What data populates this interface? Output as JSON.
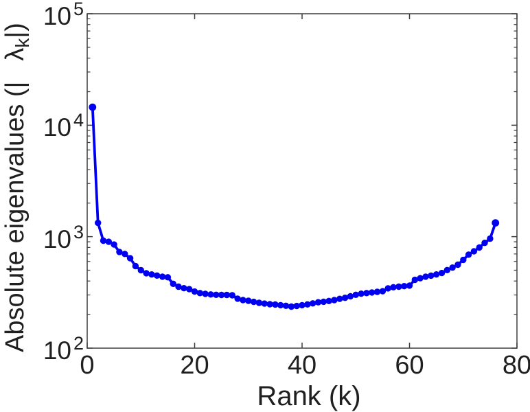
{
  "chart_data": {
    "type": "line",
    "title": "",
    "xlabel": "Rank (k)",
    "ylabel": {
      "prefix": "Absolute eigenvalues (|",
      "lambda": "λ",
      "lambda_sub": "k",
      "suffix": "|)"
    },
    "x_axis": {
      "lim": [
        0,
        80
      ],
      "ticks": [
        0,
        20,
        40,
        60,
        80
      ],
      "scale": "linear"
    },
    "y_axis": {
      "scale": "log",
      "lim_exponents": [
        2,
        5
      ],
      "tick_base": "10",
      "tick_exponents": [
        2,
        3,
        4,
        5
      ],
      "minor_tick_multiples": [
        2,
        3,
        4,
        5,
        6,
        7,
        8,
        9
      ]
    },
    "grid": false,
    "legend": "none",
    "line_color": "#0000f0",
    "marker": "filled-circle",
    "series": [
      {
        "name": "absolute-eigenvalues",
        "k_start": 1,
        "values": [
          14500,
          1330,
          920,
          900,
          850,
          730,
          700,
          640,
          545,
          500,
          470,
          458,
          448,
          438,
          432,
          378,
          356,
          345,
          338,
          322,
          312,
          307,
          303,
          301,
          300,
          300,
          298,
          278,
          270,
          266,
          260,
          255,
          251,
          248,
          246,
          243,
          240,
          236,
          239,
          243,
          247,
          252,
          258,
          261,
          265,
          270,
          277,
          283,
          292,
          301,
          308,
          312,
          316,
          320,
          324,
          344,
          352,
          356,
          360,
          364,
          410,
          424,
          438,
          447,
          458,
          472,
          502,
          528,
          560,
          620,
          690,
          740,
          800,
          880,
          960,
          1330
        ]
      }
    ]
  },
  "style": {
    "axis_color": "#3d3d3d",
    "text_color": "#1f1f1f",
    "background": "#ffffff"
  }
}
